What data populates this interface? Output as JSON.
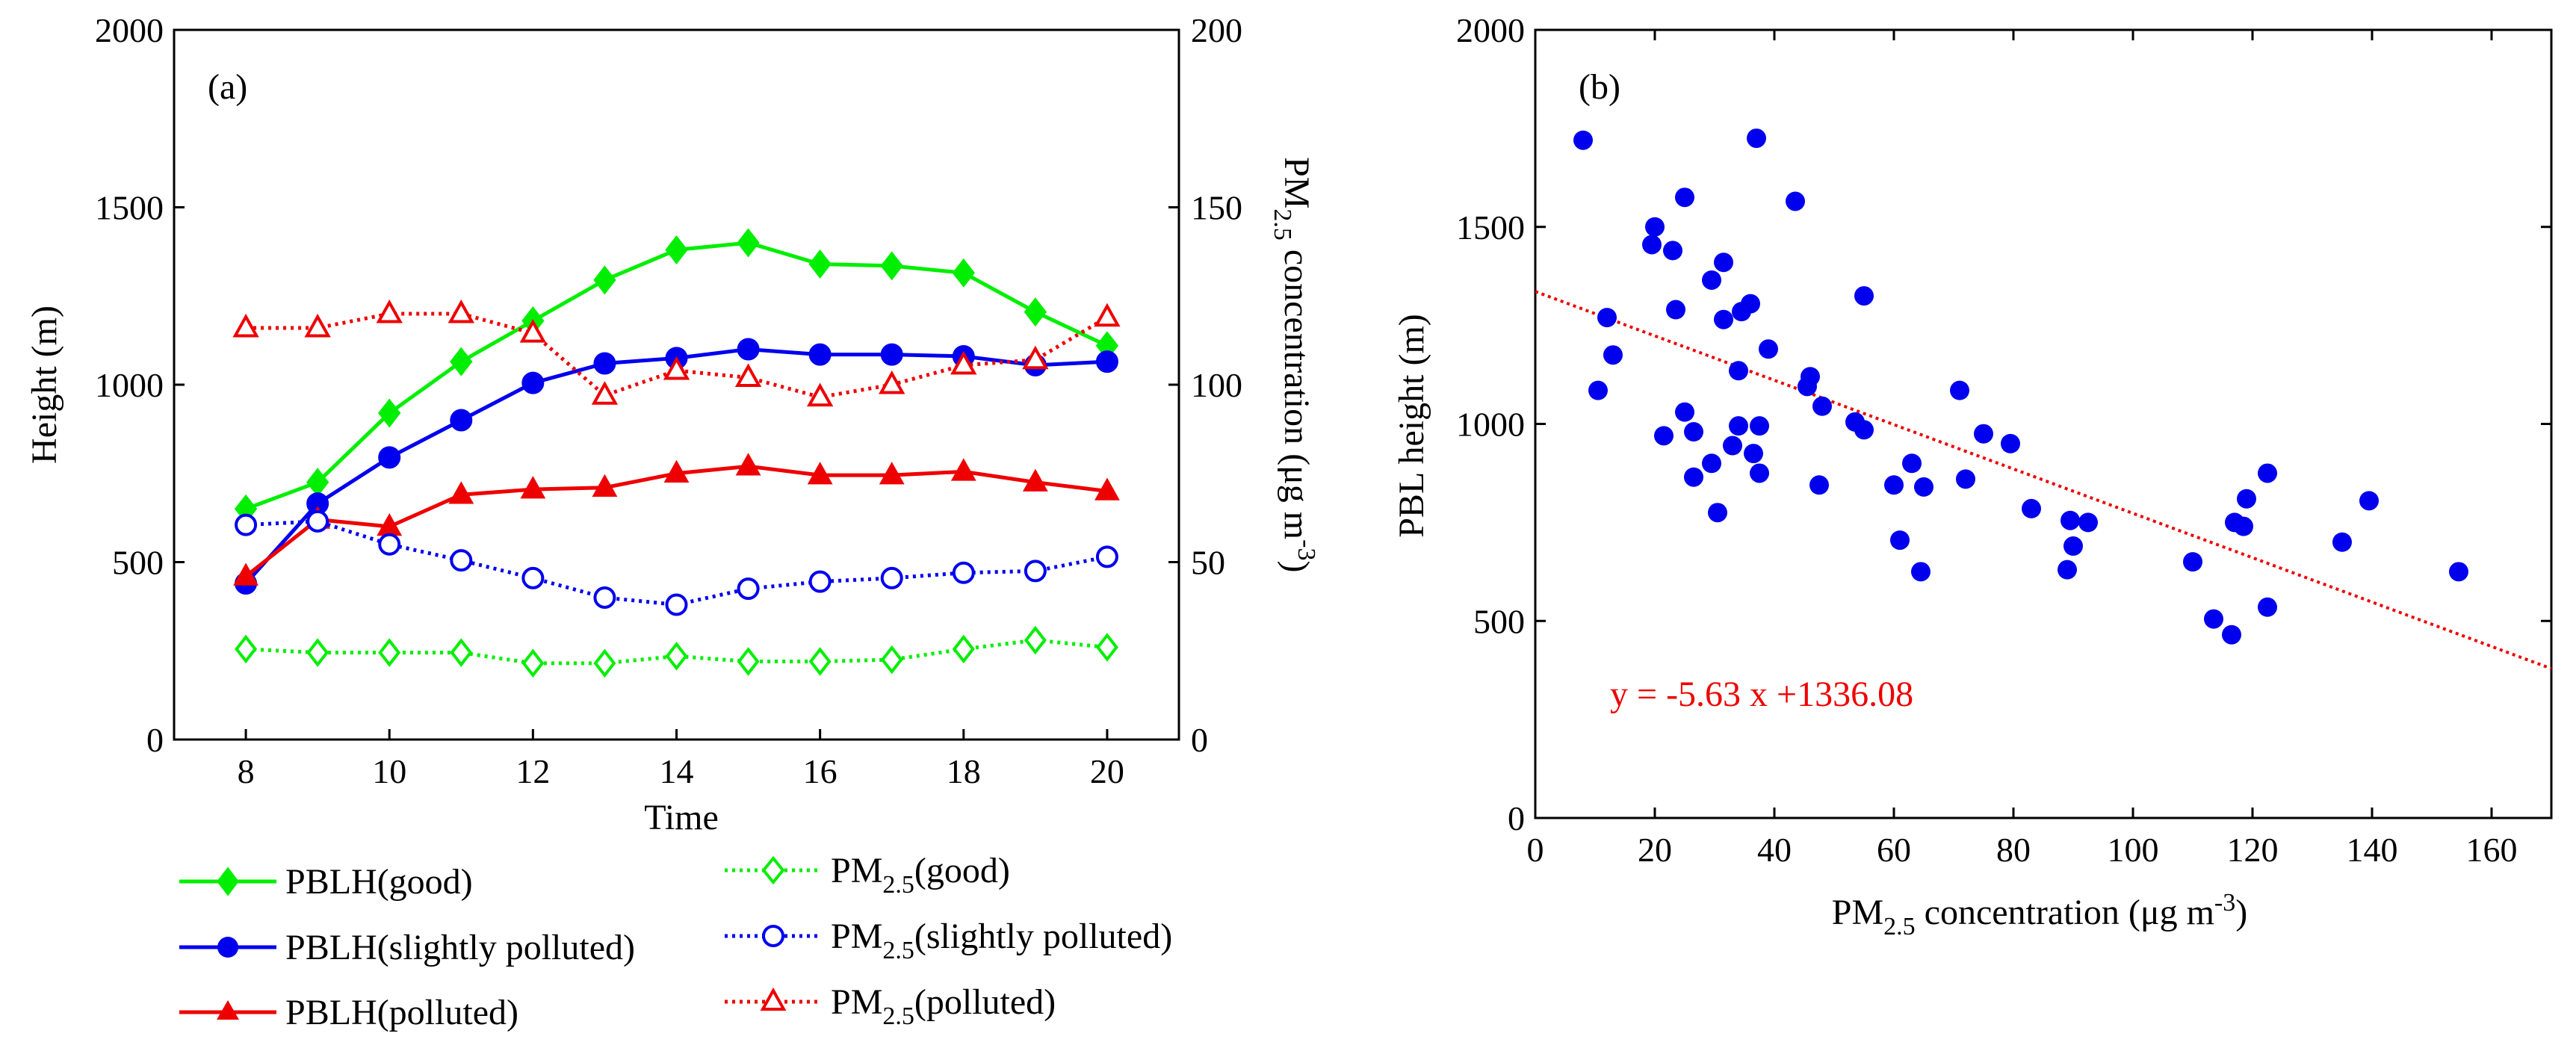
{
  "panel_a": {
    "label": "(a)",
    "xlabel": "Time",
    "ylabel_left": "Height (m)",
    "ylabel_right_main": "PM",
    "ylabel_right_sub": "2.5",
    "ylabel_right_rest": " concentration (μg m",
    "ylabel_right_sup": "-3",
    "ylabel_right_end": ")"
  },
  "panel_b": {
    "label": "(b)",
    "ylabel": "PBL height (m)",
    "xlabel_main": "PM",
    "xlabel_sub": "2.5",
    "xlabel_rest": " concentration (μg m",
    "xlabel_sup": "-3",
    "xlabel_end": ")",
    "equation": "y = -5.63 x +1336.08"
  },
  "legend": [
    {
      "main": "PBLH(good)"
    },
    {
      "main": "PBLH(slightly polluted)"
    },
    {
      "main": "PBLH(polluted)"
    },
    {
      "pre": "PM",
      "sub": "2.5",
      "post": "(good)"
    },
    {
      "pre": "PM",
      "sub": "2.5",
      "post": "(slightly polluted)"
    },
    {
      "pre": "PM",
      "sub": "2.5",
      "post": "(polluted)"
    }
  ],
  "chart_data": [
    {
      "type": "line",
      "title": "(a)",
      "xlabel": "Time",
      "ylabel": "Height (m)",
      "ylabel_right": "PM2.5 concentration (μg m-3)",
      "xlim": [
        7,
        21
      ],
      "ylim": [
        0,
        2000
      ],
      "ylim_right": [
        0,
        200
      ],
      "x_ticks": [
        8,
        10,
        12,
        14,
        16,
        18,
        20
      ],
      "y_ticks": [
        0,
        500,
        1000,
        1500,
        2000
      ],
      "y_ticks_right": [
        0,
        50,
        100,
        150,
        200
      ],
      "x": [
        8,
        9,
        10,
        11,
        12,
        13,
        14,
        15,
        16,
        17,
        18,
        19,
        20
      ],
      "series": [
        {
          "name": "PBLH(good)",
          "axis": "left",
          "color": "#00ee00",
          "marker": "diamond-filled",
          "dash": "solid",
          "values": [
            650,
            725,
            920,
            1065,
            1180,
            1295,
            1380,
            1400,
            1340,
            1335,
            1315,
            1205,
            1110
          ]
        },
        {
          "name": "PBLH(slightly polluted)",
          "axis": "left",
          "color": "#0000ee",
          "marker": "circle-filled",
          "dash": "solid",
          "values": [
            440,
            665,
            795,
            900,
            1005,
            1060,
            1075,
            1100,
            1085,
            1085,
            1080,
            1055,
            1065
          ]
        },
        {
          "name": "PBLH(polluted)",
          "axis": "left",
          "color": "#ee0000",
          "marker": "triangle-filled",
          "dash": "solid",
          "values": [
            460,
            620,
            600,
            690,
            705,
            710,
            750,
            770,
            745,
            745,
            755,
            725,
            700
          ]
        },
        {
          "name": "PM2.5(good)",
          "axis": "right",
          "color": "#00ee00",
          "marker": "diamond-open",
          "dash": "dotted",
          "values": [
            25.5,
            24.5,
            24.5,
            24.5,
            21.5,
            21.5,
            23.5,
            22,
            22,
            22.5,
            25.5,
            28,
            26
          ]
        },
        {
          "name": "PM2.5(slightly polluted)",
          "axis": "right",
          "color": "#0000ee",
          "marker": "circle-open",
          "dash": "dotted",
          "values": [
            60.5,
            61.5,
            55,
            50.5,
            45.5,
            40,
            38,
            42.5,
            44.5,
            45.5,
            47,
            47.5,
            51.5
          ]
        },
        {
          "name": "PM2.5(polluted)",
          "axis": "right",
          "color": "#ee0000",
          "marker": "triangle-open",
          "dash": "dotted",
          "values": [
            116,
            116,
            120,
            120,
            114.5,
            97,
            104,
            102,
            96.5,
            100,
            105.5,
            107,
            119
          ]
        }
      ]
    },
    {
      "type": "scatter",
      "title": "(b)",
      "xlabel": "PM2.5 concentration (μg m-3)",
      "ylabel": "PBL height (m)",
      "xlim": [
        0,
        170
      ],
      "ylim": [
        0,
        2000
      ],
      "x_ticks": [
        0,
        20,
        40,
        60,
        80,
        100,
        120,
        140,
        160
      ],
      "y_ticks": [
        0,
        500,
        1000,
        1500,
        2000
      ],
      "color": "#0000ee",
      "fit_color": "#ee0000",
      "fit": {
        "slope": -5.63,
        "intercept": 1336.08,
        "x_range": [
          0,
          170
        ]
      },
      "points": [
        [
          8,
          1720
        ],
        [
          10.5,
          1085
        ],
        [
          12,
          1270
        ],
        [
          13,
          1175
        ],
        [
          19.5,
          1455
        ],
        [
          20,
          1500
        ],
        [
          21.5,
          970
        ],
        [
          23,
          1440
        ],
        [
          23.5,
          1290
        ],
        [
          25,
          1575
        ],
        [
          25,
          1030
        ],
        [
          26.5,
          980
        ],
        [
          26.5,
          865
        ],
        [
          29.5,
          1365
        ],
        [
          29.5,
          900
        ],
        [
          30.5,
          775
        ],
        [
          31.5,
          1265
        ],
        [
          31.5,
          1410
        ],
        [
          33,
          945
        ],
        [
          34,
          1135
        ],
        [
          34,
          995
        ],
        [
          34.5,
          1285
        ],
        [
          36,
          1305
        ],
        [
          36.5,
          925
        ],
        [
          37,
          1725
        ],
        [
          37.5,
          875
        ],
        [
          37.5,
          995
        ],
        [
          39,
          1190
        ],
        [
          43.5,
          1565
        ],
        [
          45.5,
          1095
        ],
        [
          46,
          1120
        ],
        [
          47.5,
          845
        ],
        [
          48,
          1045
        ],
        [
          53.5,
          1005
        ],
        [
          55,
          1325
        ],
        [
          55,
          985
        ],
        [
          60,
          845
        ],
        [
          61,
          705
        ],
        [
          63,
          900
        ],
        [
          64.5,
          625
        ],
        [
          65,
          840
        ],
        [
          71,
          1085
        ],
        [
          72,
          860
        ],
        [
          75,
          975
        ],
        [
          79.5,
          950
        ],
        [
          83,
          785
        ],
        [
          89,
          630
        ],
        [
          89.5,
          755
        ],
        [
          90,
          690
        ],
        [
          92.5,
          750
        ],
        [
          110,
          650
        ],
        [
          113.5,
          505
        ],
        [
          116.5,
          465
        ],
        [
          117,
          750
        ],
        [
          118.5,
          740
        ],
        [
          119,
          810
        ],
        [
          122.5,
          535
        ],
        [
          122.5,
          875
        ],
        [
          135,
          700
        ],
        [
          139.5,
          805
        ],
        [
          154.5,
          625
        ]
      ]
    }
  ]
}
